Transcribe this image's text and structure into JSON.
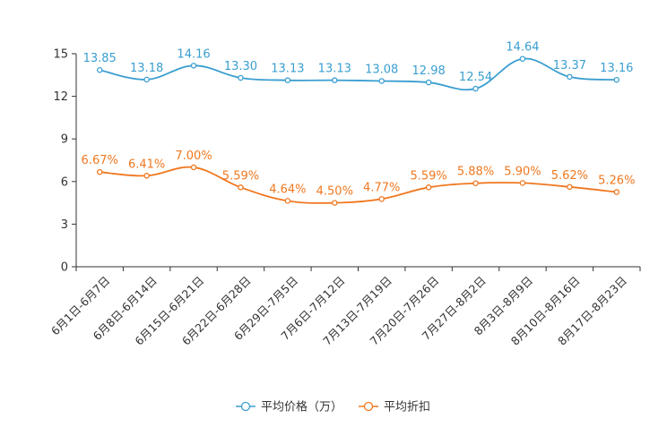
{
  "chart_data": {
    "type": "line",
    "categories": [
      "6月1日-6月7日",
      "6月8日-6月14日",
      "6月15日-6月21日",
      "6月22日-6月28日",
      "6月29日-7月5日",
      "7月6日-7月12日",
      "7月13日-7月19日",
      "7月20日-7月26日",
      "7月27日-8月2日",
      "8月3日-8月9日",
      "8月10日-8月16日",
      "8月17日-8月23日"
    ],
    "series": [
      {
        "name": "平均价格（万）",
        "color": "#3a9ed0",
        "values": [
          13.85,
          13.18,
          14.16,
          13.3,
          13.13,
          13.13,
          13.08,
          12.98,
          12.54,
          14.64,
          13.37,
          13.16
        ],
        "labels": [
          "13.85",
          "13.18",
          "14.16",
          "13.30",
          "13.13",
          "13.13",
          "13.08",
          "12.98",
          "12.54",
          "14.64",
          "13.37",
          "13.16"
        ]
      },
      {
        "name": "平均折扣",
        "color": "#f07820",
        "values": [
          6.67,
          6.41,
          7.0,
          5.59,
          4.64,
          4.5,
          4.77,
          5.59,
          5.88,
          5.9,
          5.62,
          5.26
        ],
        "labels": [
          "6.67%",
          "6.41%",
          "7.00%",
          "5.59%",
          "4.64%",
          "4.50%",
          "4.77%",
          "5.59%",
          "5.88%",
          "5.90%",
          "5.62%",
          "5.26%"
        ]
      }
    ],
    "y_ticks": [
      0,
      3,
      6,
      9,
      12,
      15
    ],
    "ylim": [
      0,
      15
    ],
    "title": "",
    "xlabel": "",
    "ylabel": "",
    "grid": false,
    "legend_position": "bottom-center"
  }
}
